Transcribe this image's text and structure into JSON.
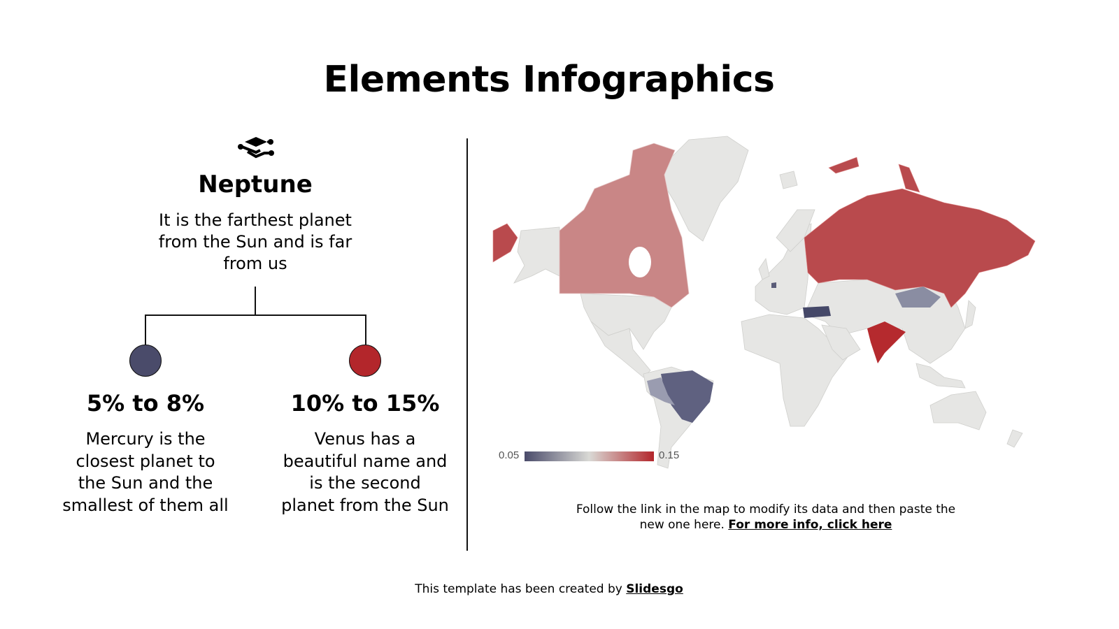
{
  "title": "Elements Infographics",
  "main": {
    "icon": "layers-icon",
    "heading": "Neptune",
    "description": "It is the farthest planet from the Sun and is far from us"
  },
  "branches": [
    {
      "range": "5% to 8%",
      "description": "Mercury is the closest planet to the Sun and the smallest of them all",
      "color": "#4a4b6a"
    },
    {
      "range": "10% to 15%",
      "description": "Venus has a beautiful name and is the second planet from the Sun",
      "color": "#b3262b"
    }
  ],
  "map": {
    "legend_min": "0.05",
    "legend_max": "0.15",
    "legend_colors": [
      "#4a4b6a",
      "#d9d9d5",
      "#b3262b"
    ],
    "base_color": "#e6e6e4"
  },
  "note": {
    "text": "Follow the link in the map to modify its data and then paste the new one here.",
    "link": "For more info, click here"
  },
  "footer": {
    "text": "This template has been created by",
    "link": "Slidesgo"
  }
}
